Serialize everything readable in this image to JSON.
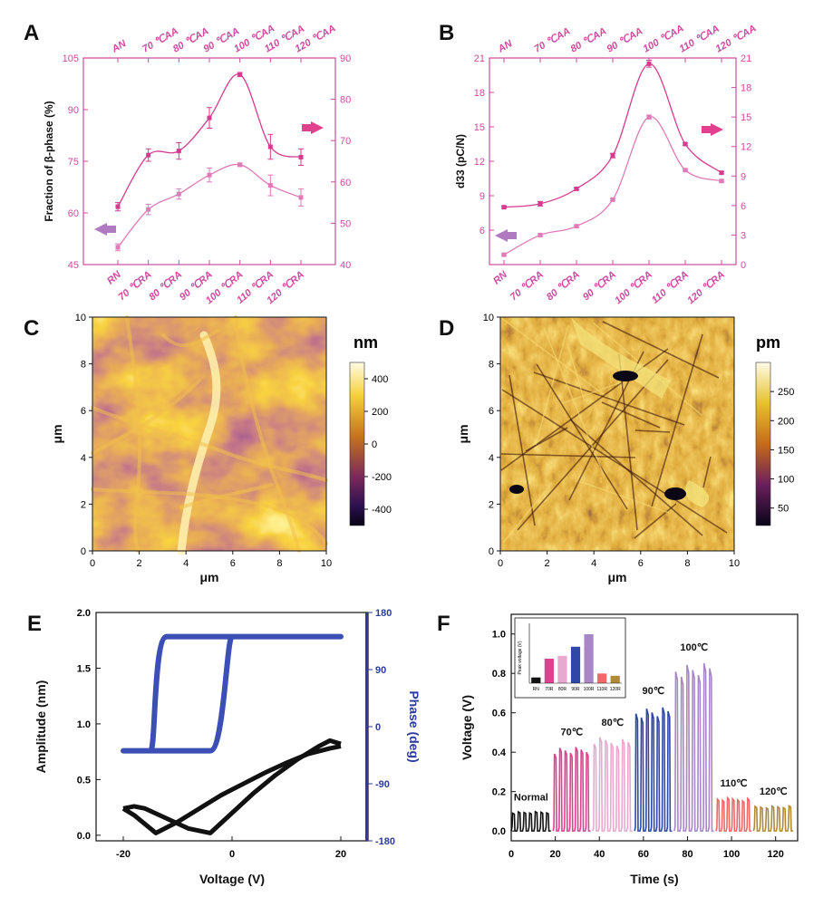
{
  "panels": {
    "A": "A",
    "B": "B",
    "C": "C",
    "D": "D",
    "E": "E",
    "F": "F"
  },
  "colors": {
    "magenta": "#d63b8f",
    "light_magenta": "#e07ab8",
    "pink_axis": "#d04aa0",
    "blue": "#3b4fb5",
    "navy": "#2b3a9c",
    "black": "#111111"
  },
  "chart_data": [
    {
      "id": "A",
      "type": "line",
      "xlabel_bottom": "",
      "bottom_categories": [
        "RN",
        "70 ℃RA",
        "80 ℃RA",
        "90 ℃RA",
        "100 ℃RA",
        "110 ℃RA",
        "120 ℃RA"
      ],
      "top_categories": [
        "AN",
        "70 ℃AA",
        "80 ℃AA",
        "90 ℃AA",
        "100 ℃AA",
        "110 ℃AA",
        "120 ℃AA"
      ],
      "ylabel_left": "Fraction of β-phase (%)",
      "ylim_left": [
        45,
        105
      ],
      "yticks_left": [
        "45",
        "60",
        "75",
        "90",
        "105"
      ],
      "ylim_right": [
        40,
        90
      ],
      "yticks_right": [
        "40",
        "50",
        "60",
        "70",
        "80",
        "90"
      ],
      "series": [
        {
          "axis": "right",
          "values": [
            54,
            66.5,
            67.5,
            75.5,
            86,
            68.5,
            66
          ],
          "errors": [
            1,
            1.5,
            2,
            2.5,
            0.5,
            3,
            2
          ]
        },
        {
          "axis": "left",
          "values": [
            50,
            61,
            65.5,
            71,
            74,
            68,
            64.5
          ],
          "errors": [
            1,
            1.5,
            1.5,
            2,
            0.5,
            3,
            2.5
          ]
        }
      ],
      "arrows": [
        {
          "side": "left",
          "direction": "left"
        },
        {
          "side": "right",
          "direction": "right"
        }
      ]
    },
    {
      "id": "B",
      "type": "line",
      "bottom_categories": [
        "RN",
        "70 ℃RA",
        "80 ℃RA",
        "90 ℃RA",
        "100 ℃RA",
        "110 ℃RA",
        "120 ℃RA"
      ],
      "top_categories": [
        "AN",
        "70 ℃AA",
        "80 ℃AA",
        "90 ℃AA",
        "100 ℃AA",
        "110 ℃AA",
        "120 ℃AA"
      ],
      "ylabel_left": "d33 (pC/N)",
      "ylim_left": [
        3,
        21
      ],
      "yticks_left": [
        "6",
        "9",
        "12",
        "15",
        "18",
        "21"
      ],
      "ylim_right": [
        0,
        21
      ],
      "yticks_right": [
        "0",
        "3",
        "6",
        "9",
        "12",
        "15",
        "18",
        "21"
      ],
      "series": [
        {
          "axis": "left",
          "values": [
            8,
            8.3,
            9.6,
            12.5,
            20.5,
            13.5,
            11
          ],
          "errors": [
            0.1,
            0.2,
            0.1,
            0.2,
            0.3,
            0.1,
            0.1
          ]
        },
        {
          "axis": "right",
          "values": [
            1,
            3,
            3.9,
            6.6,
            15,
            9.6,
            8.5
          ],
          "errors": [
            0.1,
            0.1,
            0.1,
            0.1,
            0.2,
            0.1,
            0.1
          ]
        }
      ],
      "arrows": [
        {
          "side": "left",
          "direction": "left"
        },
        {
          "side": "right",
          "direction": "right"
        }
      ]
    },
    {
      "id": "C",
      "type": "heatmap",
      "xlabel": "μm",
      "ylabel": "μm",
      "xlim": [
        0,
        10
      ],
      "ylim": [
        0,
        10
      ],
      "xticks": [
        "0",
        "2",
        "4",
        "6",
        "8",
        "10"
      ],
      "yticks": [
        "0",
        "2",
        "4",
        "6",
        "8",
        "10"
      ],
      "colorbar_unit": "nm",
      "colorbar_ticks": [
        "400",
        "200",
        "0",
        "-200",
        "-400"
      ],
      "colorbar_range": [
        -500,
        500
      ]
    },
    {
      "id": "D",
      "type": "heatmap",
      "xlabel": "μm",
      "ylabel": "μm",
      "xlim": [
        0,
        10
      ],
      "ylim": [
        0,
        10
      ],
      "xticks": [
        "0",
        "2",
        "4",
        "6",
        "8",
        "10"
      ],
      "yticks": [
        "0",
        "2",
        "4",
        "6",
        "8",
        "10"
      ],
      "colorbar_unit": "pm",
      "colorbar_ticks": [
        "250",
        "200",
        "150",
        "100",
        "50"
      ],
      "colorbar_range": [
        20,
        300
      ]
    },
    {
      "id": "E",
      "type": "line",
      "xlabel": "Voltage (V)",
      "xlim": [
        -25,
        25
      ],
      "xticks": [
        "-20",
        "0",
        "20"
      ],
      "ylabel_left": "Amplitude (nm)",
      "ylim_left": [
        -0.05,
        2.0
      ],
      "yticks_left": [
        "0.0",
        "0.5",
        "1.0",
        "1.5",
        "2.0"
      ],
      "ylabel_right": "Phase (deg)",
      "ylim_right": [
        -180,
        180
      ],
      "yticks_right": [
        "-180",
        "-90",
        "0",
        "90",
        "180"
      ],
      "series": [
        {
          "name": "",
          "axis": "right",
          "shape": "phase-loop",
          "low": -38,
          "high": 142,
          "switch_neg": -14,
          "switch_pos": -1
        },
        {
          "name": "",
          "axis": "left",
          "shape": "butterfly",
          "upper": [
            [
              -20,
              0.24
            ],
            [
              -18,
              0.26
            ],
            [
              -16,
              0.24
            ],
            [
              -12,
              0.15
            ],
            [
              -8,
              0.06
            ],
            [
              -4,
              0.02
            ],
            [
              0,
              0.2
            ],
            [
              4,
              0.38
            ],
            [
              8,
              0.54
            ],
            [
              12,
              0.68
            ],
            [
              16,
              0.8
            ],
            [
              18,
              0.85
            ],
            [
              20,
              0.82
            ]
          ],
          "lower": [
            [
              -20,
              0.24
            ],
            [
              -18,
              0.18
            ],
            [
              -14,
              0.02
            ],
            [
              -10,
              0.12
            ],
            [
              -6,
              0.24
            ],
            [
              -2,
              0.36
            ],
            [
              2,
              0.46
            ],
            [
              6,
              0.56
            ],
            [
              10,
              0.65
            ],
            [
              14,
              0.73
            ],
            [
              18,
              0.78
            ],
            [
              20,
              0.8
            ]
          ]
        }
      ]
    },
    {
      "id": "F",
      "type": "line",
      "xlabel": "Time (s)",
      "xlim": [
        0,
        130
      ],
      "xticks": [
        "0",
        "20",
        "40",
        "60",
        "80",
        "100",
        "120"
      ],
      "ylabel": "Voltage (V)",
      "ylim": [
        -0.05,
        1.1
      ],
      "yticks": [
        "0.0",
        "0.2",
        "0.4",
        "0.6",
        "0.8",
        "1.0"
      ],
      "segments": [
        {
          "label": "Normal",
          "t0": 0,
          "t1": 18,
          "peak": 0.1,
          "color": "#111111"
        },
        {
          "label": "70℃",
          "t0": 19,
          "t1": 36,
          "peak": 0.43,
          "color": "#e0408e"
        },
        {
          "label": "80℃",
          "t0": 37,
          "t1": 55,
          "peak": 0.48,
          "color": "#e8a9cf"
        },
        {
          "label": "90℃",
          "t0": 56,
          "t1": 73,
          "peak": 0.64,
          "color": "#2f48a8"
        },
        {
          "label": "100℃",
          "t0": 74,
          "t1": 92,
          "peak": 0.86,
          "color": "#a886c8"
        },
        {
          "label": "110℃",
          "t0": 93,
          "t1": 109,
          "peak": 0.17,
          "color": "#ee6a6a"
        },
        {
          "label": "120℃",
          "t0": 110,
          "t1": 128,
          "peak": 0.13,
          "color": "#b08a34"
        }
      ],
      "inset": {
        "type": "bar",
        "ylabel": "Peak voltage (V)",
        "categories": [
          "RN",
          "70R",
          "80R",
          "90R",
          "100R",
          "110R",
          "120R"
        ],
        "values": [
          0.1,
          0.43,
          0.48,
          0.64,
          0.86,
          0.17,
          0.13
        ],
        "colors": [
          "#111111",
          "#e0408e",
          "#e8a9cf",
          "#2f48a8",
          "#a886c8",
          "#ee6a6a",
          "#b08a34"
        ]
      }
    }
  ]
}
